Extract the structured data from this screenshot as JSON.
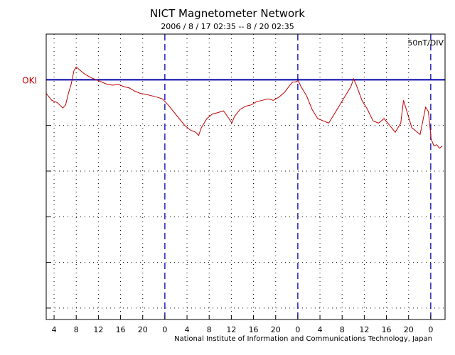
{
  "chart_data": {
    "type": "line",
    "title": "NICT Magnetometer Network",
    "subtitle": "2006 / 8 / 17   02:35 --  8 / 20   02:35",
    "scale": "50nT/DIV",
    "station": "OKI",
    "credit": "National Institute of Information and Communications Technology, Japan",
    "x_unit": "hours since 2006-08-17 02:35",
    "xlim": [
      0,
      72
    ],
    "ylim_div": [
      -5.25,
      1.0
    ],
    "y_divisions": [
      -5,
      -4,
      -3,
      -2,
      -1,
      0
    ],
    "x_ticks": [
      {
        "h": 1.42,
        "label": "4"
      },
      {
        "h": 5.42,
        "label": "8"
      },
      {
        "h": 9.42,
        "label": "12"
      },
      {
        "h": 13.42,
        "label": "16"
      },
      {
        "h": 17.42,
        "label": "20"
      },
      {
        "h": 21.42,
        "label": "0"
      },
      {
        "h": 25.42,
        "label": "4"
      },
      {
        "h": 29.42,
        "label": "8"
      },
      {
        "h": 33.42,
        "label": "12"
      },
      {
        "h": 37.42,
        "label": "16"
      },
      {
        "h": 41.42,
        "label": "20"
      },
      {
        "h": 45.42,
        "label": "0"
      },
      {
        "h": 49.42,
        "label": "4"
      },
      {
        "h": 53.42,
        "label": "8"
      },
      {
        "h": 57.42,
        "label": "12"
      },
      {
        "h": 61.42,
        "label": "16"
      },
      {
        "h": 65.42,
        "label": "20"
      },
      {
        "h": 69.42,
        "label": "0"
      }
    ],
    "midnights": [
      21.42,
      45.42,
      69.42
    ],
    "baseline_div": 0,
    "series": [
      {
        "name": "OKI",
        "color": "#c00000",
        "points": [
          [
            0,
            -0.3
          ],
          [
            1,
            -0.45
          ],
          [
            2,
            -0.5
          ],
          [
            3,
            -0.62
          ],
          [
            3.5,
            -0.55
          ],
          [
            4,
            -0.3
          ],
          [
            4.5,
            -0.1
          ],
          [
            5,
            0.2
          ],
          [
            5.4,
            0.28
          ],
          [
            6,
            0.22
          ],
          [
            7,
            0.12
          ],
          [
            8,
            0.05
          ],
          [
            9,
            0.0
          ],
          [
            10,
            -0.05
          ],
          [
            11,
            -0.1
          ],
          [
            12,
            -0.12
          ],
          [
            13,
            -0.1
          ],
          [
            14,
            -0.15
          ],
          [
            15,
            -0.18
          ],
          [
            16,
            -0.25
          ],
          [
            17,
            -0.3
          ],
          [
            18,
            -0.32
          ],
          [
            19,
            -0.35
          ],
          [
            20,
            -0.38
          ],
          [
            21,
            -0.42
          ],
          [
            22,
            -0.55
          ],
          [
            23,
            -0.7
          ],
          [
            24,
            -0.85
          ],
          [
            25,
            -1.0
          ],
          [
            26,
            -1.1
          ],
          [
            27,
            -1.15
          ],
          [
            27.5,
            -1.22
          ],
          [
            28,
            -1.05
          ],
          [
            29,
            -0.85
          ],
          [
            30,
            -0.75
          ],
          [
            31,
            -0.72
          ],
          [
            32,
            -0.68
          ],
          [
            33,
            -0.85
          ],
          [
            33.5,
            -0.95
          ],
          [
            34,
            -0.8
          ],
          [
            35,
            -0.65
          ],
          [
            36,
            -0.58
          ],
          [
            37,
            -0.55
          ],
          [
            38,
            -0.48
          ],
          [
            39,
            -0.45
          ],
          [
            40,
            -0.42
          ],
          [
            41,
            -0.45
          ],
          [
            42,
            -0.38
          ],
          [
            43,
            -0.28
          ],
          [
            44,
            -0.12
          ],
          [
            44.5,
            -0.05
          ],
          [
            45,
            -0.05
          ],
          [
            45.5,
            -0.02
          ],
          [
            46,
            -0.15
          ],
          [
            47,
            -0.35
          ],
          [
            48,
            -0.65
          ],
          [
            49,
            -0.85
          ],
          [
            50,
            -0.9
          ],
          [
            51,
            -0.95
          ],
          [
            52,
            -0.75
          ],
          [
            53,
            -0.55
          ],
          [
            54,
            -0.35
          ],
          [
            55,
            -0.15
          ],
          [
            55.5,
            0.02
          ],
          [
            56,
            -0.12
          ],
          [
            57,
            -0.45
          ],
          [
            58,
            -0.65
          ],
          [
            59,
            -0.9
          ],
          [
            60,
            -0.95
          ],
          [
            61,
            -0.85
          ],
          [
            62,
            -1.0
          ],
          [
            63,
            -1.15
          ],
          [
            64,
            -0.95
          ],
          [
            64.5,
            -0.45
          ],
          [
            65,
            -0.65
          ],
          [
            66,
            -1.05
          ],
          [
            67,
            -1.15
          ],
          [
            67.5,
            -1.2
          ],
          [
            68,
            -0.9
          ],
          [
            68.5,
            -0.6
          ],
          [
            69,
            -0.7
          ],
          [
            69.5,
            -1.3
          ],
          [
            70,
            -1.45
          ],
          [
            70.5,
            -1.42
          ],
          [
            71,
            -1.5
          ],
          [
            71.5,
            -1.45
          ]
        ]
      }
    ]
  }
}
